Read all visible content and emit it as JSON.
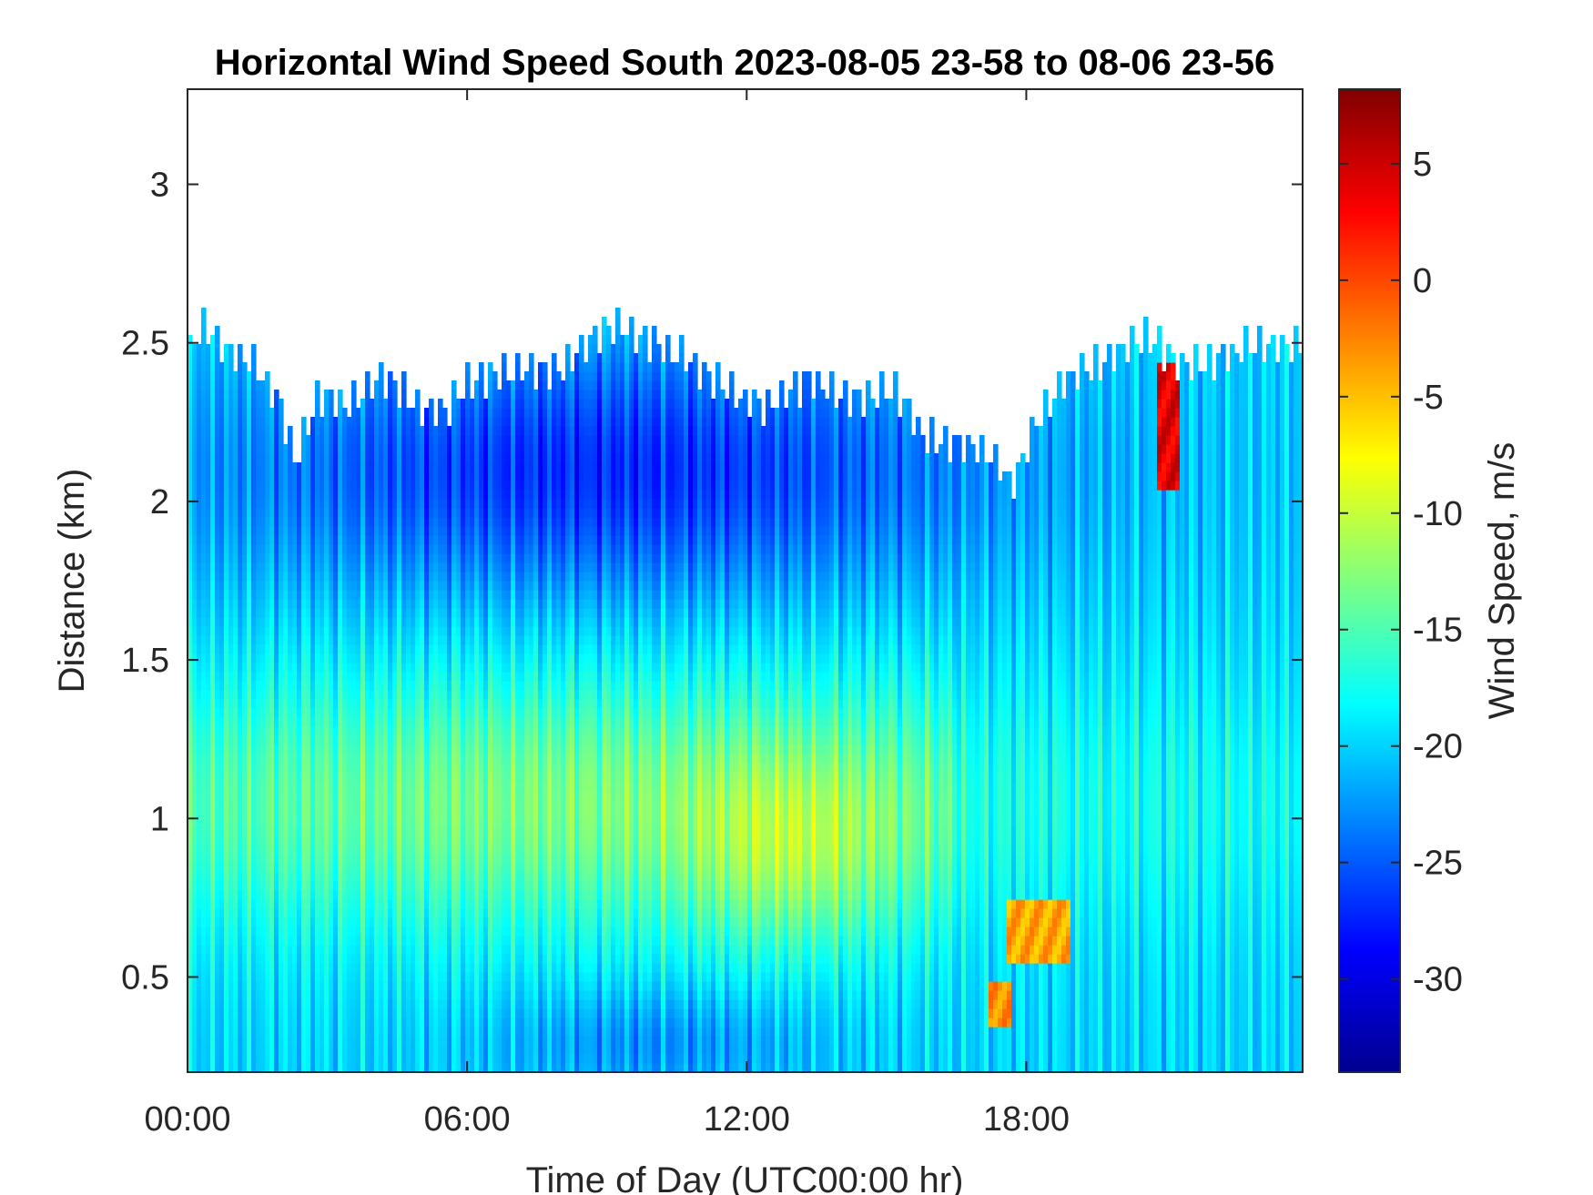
{
  "chart_data": {
    "type": "heatmap",
    "title": "Horizontal Wind Speed South 2023-08-05 23-58 to 08-06 23-56",
    "xlabel": "Time of Day (UTC00:00 hr)",
    "ylabel": "Distance (km)",
    "colorbar_label": "Wind Speed, m/s",
    "colormap": "jet",
    "x_tick_labels": [
      "00:00",
      "06:00",
      "12:00",
      "18:00"
    ],
    "x_ticks_hours": [
      0,
      6,
      12,
      18
    ],
    "xlim_hours": [
      0,
      23.93
    ],
    "y_ticks": [
      0.5,
      1,
      1.5,
      2,
      2.5,
      3
    ],
    "y_tick_labels": [
      "0.5",
      "1",
      "1.5",
      "2",
      "2.5",
      "3"
    ],
    "ylim_km": [
      0.2,
      3.3
    ],
    "colorbar_ticks": [
      5,
      0,
      -5,
      -10,
      -15,
      -20,
      -25,
      -30
    ],
    "colorbar_tick_labels": [
      "5",
      "0",
      "-5",
      "-10",
      "-15",
      "-20",
      "-25",
      "-30"
    ],
    "clim": [
      -34,
      8.2
    ],
    "data_top_km": [
      [
        0.0,
        2.45
      ],
      [
        0.3,
        2.55
      ],
      [
        0.8,
        2.48
      ],
      [
        1.5,
        2.42
      ],
      [
        2.0,
        2.3
      ],
      [
        2.3,
        2.12
      ],
      [
        2.8,
        2.33
      ],
      [
        3.5,
        2.3
      ],
      [
        4.2,
        2.4
      ],
      [
        5.0,
        2.3
      ],
      [
        5.5,
        2.28
      ],
      [
        6.0,
        2.38
      ],
      [
        7.0,
        2.41
      ],
      [
        8.0,
        2.42
      ],
      [
        8.8,
        2.53
      ],
      [
        9.3,
        2.56
      ],
      [
        10.0,
        2.5
      ],
      [
        10.8,
        2.44
      ],
      [
        11.8,
        2.33
      ],
      [
        12.5,
        2.3
      ],
      [
        13.3,
        2.38
      ],
      [
        14.3,
        2.33
      ],
      [
        15.2,
        2.35
      ],
      [
        15.8,
        2.2
      ],
      [
        16.8,
        2.18
      ],
      [
        17.3,
        2.14
      ],
      [
        17.7,
        2.05
      ],
      [
        18.2,
        2.25
      ],
      [
        18.8,
        2.38
      ],
      [
        19.8,
        2.45
      ],
      [
        20.6,
        2.52
      ],
      [
        21.3,
        2.43
      ],
      [
        22.2,
        2.45
      ],
      [
        23.0,
        2.5
      ],
      [
        23.93,
        2.48
      ]
    ],
    "regions": [
      {
        "description": "stronger winds (about -27 m/s) near top of layer",
        "x_hours": [
          2,
          16
        ],
        "y_km": [
          1.8,
          2.4
        ],
        "value": -27
      },
      {
        "description": "weaker winds (about -9 m/s) core",
        "x_hours": [
          11.5,
          15
        ],
        "y_km": [
          0.7,
          1.1
        ],
        "value": -9
      },
      {
        "description": "moderate band (about -13 m/s)",
        "x_hours": [
          4,
          15
        ],
        "y_km": [
          0.7,
          1.4
        ],
        "value": -13
      },
      {
        "description": "positive wind streak",
        "x_hours": [
          20.8,
          21.3
        ],
        "y_km": [
          2.05,
          2.45
        ],
        "value": 4
      },
      {
        "description": "weak wind patch",
        "x_hours": [
          17.6,
          18.9
        ],
        "y_km": [
          0.55,
          0.75
        ],
        "value": -4
      },
      {
        "description": "weak wind patch",
        "x_hours": [
          17.2,
          17.7
        ],
        "y_km": [
          0.33,
          0.48
        ],
        "value": -3
      }
    ]
  }
}
